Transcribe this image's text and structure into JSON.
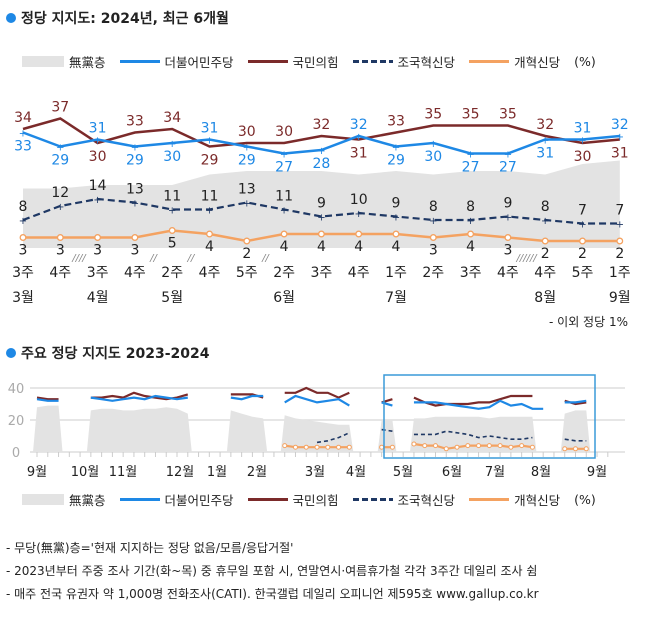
{
  "chart_data": [
    {
      "type": "line",
      "title": "정당 지지도: 2024년, 최근 6개월",
      "weeks": [
        "3주",
        "4주",
        "3주",
        "4주",
        "2주",
        "4주",
        "5주",
        "2주",
        "3주",
        "4주",
        "1주",
        "2주",
        "3주",
        "4주",
        "4주",
        "5주",
        "1주"
      ],
      "months": [
        {
          "index": 0,
          "label": "3월"
        },
        {
          "index": 2,
          "label": "4월"
        },
        {
          "index": 4,
          "label": "5월"
        },
        {
          "index": 7,
          "label": "6월"
        },
        {
          "index": 10,
          "label": "7월"
        },
        {
          "index": 14,
          "label": "8월"
        },
        {
          "index": 16,
          "label": "9월"
        }
      ],
      "series": [
        {
          "name": "無黨층",
          "kind": "area",
          "color": "#e3e3e3",
          "values": [
            17,
            17,
            18,
            18,
            18,
            21,
            22,
            22,
            22,
            21,
            22,
            21,
            22,
            22,
            21,
            24,
            25
          ]
        },
        {
          "name": "더불어민주당",
          "kind": "line",
          "color": "#1e88e5",
          "values": [
            33,
            29,
            31,
            29,
            30,
            31,
            29,
            27,
            28,
            32,
            29,
            30,
            27,
            27,
            31,
            31,
            32
          ]
        },
        {
          "name": "국민의힘",
          "kind": "line",
          "color": "#7b2a2a",
          "values": [
            34,
            37,
            30,
            33,
            34,
            29,
            30,
            30,
            32,
            31,
            33,
            35,
            35,
            35,
            32,
            30,
            31
          ]
        },
        {
          "name": "조국혁신당",
          "kind": "dashed",
          "color": "#1f3864",
          "values": [
            8,
            12,
            14,
            13,
            11,
            11,
            13,
            11,
            9,
            10,
            9,
            8,
            8,
            9,
            8,
            7,
            7
          ]
        },
        {
          "name": "개혁신당",
          "kind": "line",
          "color": "#f4a261",
          "values": [
            3,
            3,
            3,
            3,
            5,
            4,
            2,
            4,
            4,
            4,
            4,
            3,
            4,
            3,
            2,
            2,
            2
          ]
        }
      ],
      "legend_suffix": "(%)",
      "note": "- 이외 정당 1%",
      "breaks": [
        {
          "after": 1,
          "mark": "////"
        },
        {
          "after": 3,
          "mark": "//"
        },
        {
          "after": 4,
          "mark": "//"
        },
        {
          "after": 6,
          "mark": "//"
        },
        {
          "after": 13,
          "mark": "//////"
        }
      ]
    },
    {
      "type": "line",
      "title": "주요 정당 지지도 2023-2024",
      "ylim": [
        0,
        40
      ],
      "yticks": [
        0,
        20,
        40
      ],
      "grid": true,
      "xticks": [
        "9월",
        "10월",
        "11월",
        "12월",
        "1월",
        "2월",
        "3월",
        "4월",
        "5월",
        "6월",
        "7월",
        "8월",
        "9월"
      ],
      "series": [
        {
          "name": "無黨층",
          "kind": "area",
          "color": "#e3e3e3",
          "values": [
            28,
            29,
            29,
            null,
            null,
            26,
            27,
            27,
            26,
            26,
            27,
            27,
            28,
            27,
            24,
            null,
            null,
            null,
            26,
            24,
            22,
            21,
            null,
            23,
            21,
            20,
            19,
            18,
            17,
            17,
            null,
            null,
            20,
            20,
            null,
            21,
            21,
            22,
            22,
            22,
            22,
            22,
            21,
            22,
            22,
            22,
            22,
            null,
            null,
            24,
            26,
            26,
            null
          ]
        },
        {
          "name": "더불어민주당",
          "kind": "line",
          "color": "#1e88e5",
          "values": [
            33,
            32,
            32,
            null,
            null,
            34,
            33,
            32,
            33,
            34,
            33,
            35,
            34,
            33,
            34,
            null,
            null,
            null,
            34,
            33,
            35,
            35,
            null,
            31,
            35,
            33,
            31,
            32,
            33,
            29,
            null,
            null,
            31,
            29,
            null,
            31,
            31,
            31,
            30,
            29,
            28,
            27,
            28,
            32,
            29,
            30,
            27,
            27,
            null,
            31,
            31,
            32,
            null
          ]
        },
        {
          "name": "국민의힘",
          "kind": "line",
          "color": "#7b2a2a",
          "values": [
            34,
            33,
            33,
            null,
            null,
            34,
            34,
            35,
            34,
            37,
            35,
            34,
            33,
            34,
            36,
            null,
            null,
            null,
            36,
            36,
            36,
            34,
            null,
            37,
            37,
            40,
            37,
            37,
            34,
            37,
            null,
            null,
            31,
            33,
            null,
            34,
            31,
            29,
            30,
            30,
            30,
            31,
            31,
            33,
            35,
            35,
            35,
            null,
            null,
            32,
            30,
            31,
            null
          ]
        },
        {
          "name": "조국혁신당",
          "kind": "dashed",
          "color": "#1f3864",
          "values": [
            null,
            null,
            null,
            null,
            null,
            null,
            null,
            null,
            null,
            null,
            null,
            null,
            null,
            null,
            null,
            null,
            null,
            null,
            null,
            null,
            null,
            null,
            null,
            null,
            null,
            null,
            6,
            7,
            9,
            12,
            null,
            null,
            14,
            13,
            null,
            11,
            11,
            11,
            13,
            12,
            11,
            9,
            10,
            9,
            8,
            8,
            9,
            null,
            null,
            8,
            7,
            7,
            null
          ]
        },
        {
          "name": "개혁신당",
          "kind": "line",
          "color": "#f4a261",
          "values": [
            null,
            null,
            null,
            null,
            null,
            null,
            null,
            null,
            null,
            null,
            null,
            null,
            null,
            null,
            null,
            null,
            null,
            null,
            null,
            null,
            null,
            null,
            null,
            4,
            3,
            3,
            3,
            3,
            3,
            3,
            null,
            null,
            3,
            3,
            null,
            5,
            4,
            4,
            2,
            3,
            4,
            4,
            4,
            4,
            3,
            4,
            3,
            null,
            null,
            2,
            2,
            2,
            null
          ]
        }
      ],
      "legend_suffix": "(%)"
    }
  ],
  "footer": [
    "- 무당(無黨)층='현재 지지하는 정당 없음/모름/응답거절'",
    "- 2023년부터 주중 조사 기간(화~목) 중 휴무일 포함 시, 연말연시·여름휴가철 각각 3주간 데일리 조사 쉼",
    "- 매주 전국 유권자 약 1,000명 전화조사(CATI). 한국갤럽 데일리 오피니언 제595호 www.gallup.co.kr"
  ]
}
